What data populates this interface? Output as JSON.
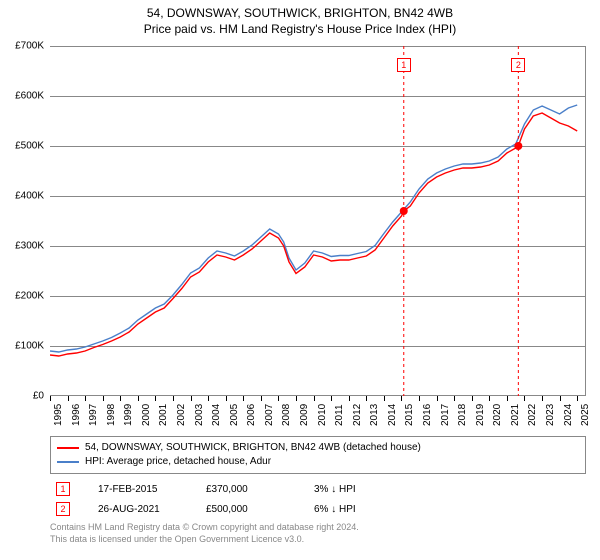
{
  "title": {
    "main": "54, DOWNSWAY, SOUTHWICK, BRIGHTON, BN42 4WB",
    "sub": "Price paid vs. HM Land Registry's House Price Index (HPI)"
  },
  "chart": {
    "type": "line",
    "y_axis": {
      "min": 0,
      "max": 700000,
      "step": 100000,
      "labels": [
        "£0",
        "£100K",
        "£200K",
        "£300K",
        "£400K",
        "£500K",
        "£600K",
        "£700K"
      ]
    },
    "x_axis": {
      "years": [
        1995,
        1996,
        1997,
        1998,
        1999,
        2000,
        2001,
        2002,
        2003,
        2004,
        2005,
        2006,
        2007,
        2008,
        2009,
        2010,
        2011,
        2012,
        2013,
        2014,
        2015,
        2016,
        2017,
        2018,
        2019,
        2020,
        2021,
        2022,
        2023,
        2024,
        2025
      ]
    },
    "colors": {
      "series1": "#ff0000",
      "series2": "#4a7fc9",
      "vline": "#ff0000",
      "marker_box": "#ff0000",
      "grid": "#888888",
      "background": "#ffffff"
    },
    "line_width": 1.4,
    "series1_label": "54, DOWNSWAY, SOUTHWICK, BRIGHTON, BN42 4WB (detached house)",
    "series2_label": "HPI: Average price, detached house, Adur",
    "series1": [
      [
        1995,
        82000
      ],
      [
        1995.5,
        80000
      ],
      [
        1996,
        84000
      ],
      [
        1996.5,
        86000
      ],
      [
        1997,
        90000
      ],
      [
        1997.5,
        97000
      ],
      [
        1998,
        103000
      ],
      [
        1998.5,
        110000
      ],
      [
        1999,
        118000
      ],
      [
        1999.5,
        128000
      ],
      [
        2000,
        144000
      ],
      [
        2000.5,
        156000
      ],
      [
        2001,
        168000
      ],
      [
        2001.5,
        176000
      ],
      [
        2002,
        195000
      ],
      [
        2002.5,
        215000
      ],
      [
        2003,
        238000
      ],
      [
        2003.5,
        248000
      ],
      [
        2004,
        268000
      ],
      [
        2004.5,
        282000
      ],
      [
        2005,
        278000
      ],
      [
        2005.5,
        272000
      ],
      [
        2006,
        282000
      ],
      [
        2006.5,
        294000
      ],
      [
        2007,
        310000
      ],
      [
        2007.5,
        326000
      ],
      [
        2008,
        316000
      ],
      [
        2008.3,
        300000
      ],
      [
        2008.6,
        268000
      ],
      [
        2009,
        245000
      ],
      [
        2009.5,
        258000
      ],
      [
        2010,
        282000
      ],
      [
        2010.5,
        278000
      ],
      [
        2011,
        270000
      ],
      [
        2011.5,
        272000
      ],
      [
        2012,
        272000
      ],
      [
        2012.5,
        276000
      ],
      [
        2013,
        280000
      ],
      [
        2013.5,
        292000
      ],
      [
        2014,
        316000
      ],
      [
        2014.5,
        340000
      ],
      [
        2015,
        360000
      ],
      [
        2015.13,
        370000
      ],
      [
        2015.5,
        380000
      ],
      [
        2016,
        406000
      ],
      [
        2016.5,
        426000
      ],
      [
        2017,
        438000
      ],
      [
        2017.5,
        446000
      ],
      [
        2018,
        452000
      ],
      [
        2018.5,
        456000
      ],
      [
        2019,
        456000
      ],
      [
        2019.5,
        458000
      ],
      [
        2020,
        462000
      ],
      [
        2020.5,
        470000
      ],
      [
        2021,
        486000
      ],
      [
        2021.5,
        496000
      ],
      [
        2021.65,
        500000
      ],
      [
        2022,
        534000
      ],
      [
        2022.5,
        560000
      ],
      [
        2023,
        566000
      ],
      [
        2023.5,
        556000
      ],
      [
        2024,
        546000
      ],
      [
        2024.5,
        540000
      ],
      [
        2025,
        530000
      ]
    ],
    "series2": [
      [
        1995,
        90000
      ],
      [
        1995.5,
        88000
      ],
      [
        1996,
        92000
      ],
      [
        1996.5,
        94000
      ],
      [
        1997,
        98000
      ],
      [
        1997.5,
        104000
      ],
      [
        1998,
        110000
      ],
      [
        1998.5,
        117000
      ],
      [
        1999,
        126000
      ],
      [
        1999.5,
        136000
      ],
      [
        2000,
        152000
      ],
      [
        2000.5,
        164000
      ],
      [
        2001,
        176000
      ],
      [
        2001.5,
        184000
      ],
      [
        2002,
        202000
      ],
      [
        2002.5,
        223000
      ],
      [
        2003,
        246000
      ],
      [
        2003.5,
        256000
      ],
      [
        2004,
        276000
      ],
      [
        2004.5,
        290000
      ],
      [
        2005,
        286000
      ],
      [
        2005.5,
        280000
      ],
      [
        2006,
        290000
      ],
      [
        2006.5,
        302000
      ],
      [
        2007,
        318000
      ],
      [
        2007.5,
        334000
      ],
      [
        2008,
        324000
      ],
      [
        2008.3,
        308000
      ],
      [
        2008.6,
        276000
      ],
      [
        2009,
        252000
      ],
      [
        2009.5,
        266000
      ],
      [
        2010,
        290000
      ],
      [
        2010.5,
        286000
      ],
      [
        2011,
        279000
      ],
      [
        2011.5,
        281000
      ],
      [
        2012,
        281000
      ],
      [
        2012.5,
        285000
      ],
      [
        2013,
        289000
      ],
      [
        2013.5,
        301000
      ],
      [
        2014,
        325000
      ],
      [
        2014.5,
        348000
      ],
      [
        2015,
        368000
      ],
      [
        2015.5,
        388000
      ],
      [
        2016,
        414000
      ],
      [
        2016.5,
        434000
      ],
      [
        2017,
        446000
      ],
      [
        2017.5,
        454000
      ],
      [
        2018,
        460000
      ],
      [
        2018.5,
        464000
      ],
      [
        2019,
        464000
      ],
      [
        2019.5,
        466000
      ],
      [
        2020,
        470000
      ],
      [
        2020.5,
        478000
      ],
      [
        2021,
        494000
      ],
      [
        2021.5,
        504000
      ],
      [
        2022,
        544000
      ],
      [
        2022.5,
        572000
      ],
      [
        2023,
        580000
      ],
      [
        2023.5,
        572000
      ],
      [
        2024,
        564000
      ],
      [
        2024.5,
        576000
      ],
      [
        2025,
        582000
      ]
    ],
    "markers": [
      {
        "n": "1",
        "year": 2015.13,
        "price": 370000
      },
      {
        "n": "2",
        "year": 2021.65,
        "price": 500000
      }
    ]
  },
  "sales": [
    {
      "n": "1",
      "date": "17-FEB-2015",
      "price": "£370,000",
      "diff": "3% ↓ HPI"
    },
    {
      "n": "2",
      "date": "26-AUG-2021",
      "price": "£500,000",
      "diff": "6% ↓ HPI"
    }
  ],
  "footer": {
    "line1": "Contains HM Land Registry data © Crown copyright and database right 2024.",
    "line2": "This data is licensed under the Open Government Licence v3.0."
  }
}
